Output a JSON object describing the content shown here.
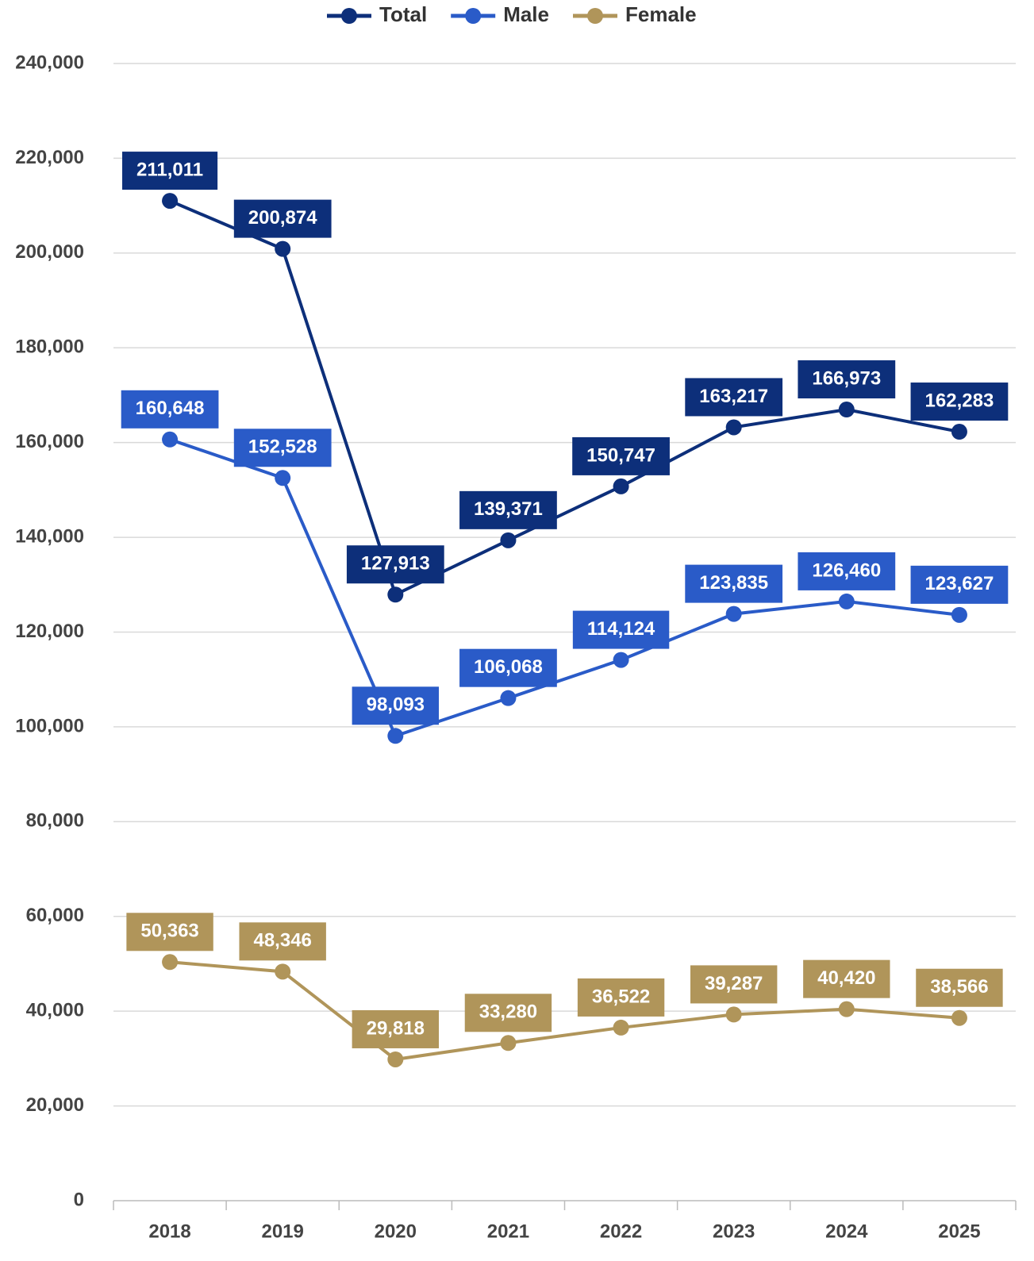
{
  "chart_data": {
    "type": "line",
    "categories": [
      "2018",
      "2019",
      "2020",
      "2021",
      "2022",
      "2023",
      "2024",
      "2025"
    ],
    "series": [
      {
        "name": "Total",
        "color": "#0d2f7a",
        "values": [
          211011,
          200874,
          127913,
          139371,
          150747,
          163217,
          166973,
          162283
        ],
        "value_labels": [
          "211,011",
          "200,874",
          "127,913",
          "139,371",
          "150,747",
          "163,217",
          "166,973",
          "162,283"
        ]
      },
      {
        "name": "Male",
        "color": "#2a5bc8",
        "values": [
          160648,
          152528,
          98093,
          106068,
          114124,
          123835,
          126460,
          123627
        ],
        "value_labels": [
          "160,648",
          "152,528",
          "98,093",
          "106,068",
          "114,124",
          "123,835",
          "126,460",
          "123,627"
        ]
      },
      {
        "name": "Female",
        "color": "#b0955a",
        "values": [
          50363,
          48346,
          29818,
          33280,
          36522,
          39287,
          40420,
          38566
        ],
        "value_labels": [
          "50,363",
          "48,346",
          "29,818",
          "33,280",
          "36,522",
          "39,287",
          "40,420",
          "38,566"
        ]
      }
    ],
    "ylim": [
      0,
      240000
    ],
    "yticks": [
      0,
      {
        "value": 20000,
        "label": "20,000"
      },
      {
        "value": 40000,
        "label": "40,000"
      },
      {
        "value": 60000,
        "label": "60,000"
      },
      {
        "value": 80000,
        "label": "80,000"
      },
      {
        "value": 100000,
        "label": "100,000"
      },
      {
        "value": 120000,
        "label": "120,000"
      },
      {
        "value": 140000,
        "label": "140,000"
      },
      {
        "value": 160000,
        "label": "160,000"
      },
      {
        "value": 180000,
        "label": "180,000"
      },
      {
        "value": 200000,
        "label": "200,000"
      },
      {
        "value": 220000,
        "label": "220,000"
      },
      {
        "value": 240000,
        "label": "240,000"
      }
    ],
    "grid": true,
    "legend": "top"
  }
}
